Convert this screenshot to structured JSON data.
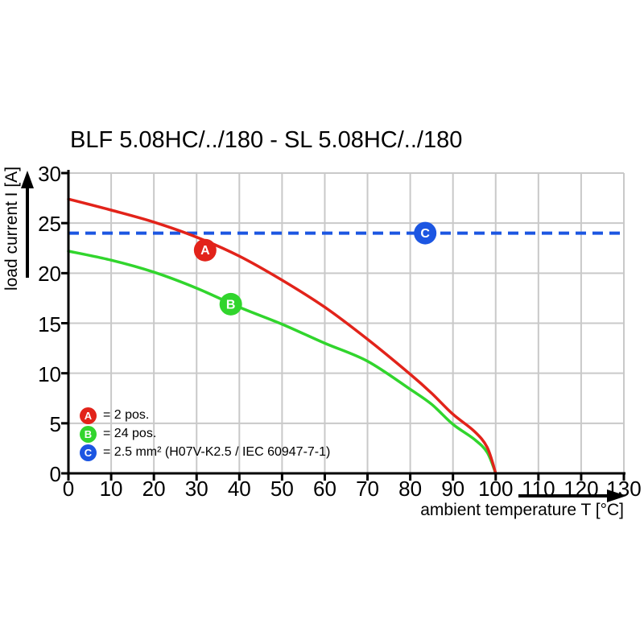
{
  "title": "BLF 5.08HC/../180 - SL 5.08HC/../180",
  "chart_data": {
    "type": "line",
    "title": "BLF 5.08HC/../180 - SL 5.08HC/../180",
    "xlabel": "ambient temperature T [°C]",
    "ylabel": "load current I [A]",
    "xlim": [
      0,
      130
    ],
    "ylim": [
      0,
      30
    ],
    "x_ticks": [
      0,
      10,
      20,
      30,
      40,
      50,
      60,
      70,
      80,
      90,
      100,
      110,
      120,
      130
    ],
    "y_ticks": [
      0,
      5,
      10,
      15,
      20,
      25,
      30
    ],
    "grid": true,
    "legend_position": "lower-left",
    "colors": {
      "grid": "#c9c9c9",
      "axis": "#000000",
      "background": "#ffffff"
    },
    "series": [
      {
        "name": "B",
        "label": "= 24 pos.",
        "color": "#31d52d",
        "style": "solid",
        "marker": {
          "x": 38,
          "y": 16.9
        },
        "points": [
          [
            0,
            22.2
          ],
          [
            10,
            21.3
          ],
          [
            20,
            20.1
          ],
          [
            30,
            18.5
          ],
          [
            40,
            16.6
          ],
          [
            50,
            14.9
          ],
          [
            60,
            13.0
          ],
          [
            70,
            11.2
          ],
          [
            80,
            8.4
          ],
          [
            85,
            6.9
          ],
          [
            90,
            4.9
          ],
          [
            95,
            3.4
          ],
          [
            98,
            2.1
          ],
          [
            100,
            0
          ]
        ]
      },
      {
        "name": "A",
        "label": "= 2 pos.",
        "color": "#e2231a",
        "style": "solid",
        "marker": {
          "x": 32,
          "y": 22.3
        },
        "points": [
          [
            0,
            27.4
          ],
          [
            10,
            26.3
          ],
          [
            20,
            25.1
          ],
          [
            30,
            23.6
          ],
          [
            40,
            21.7
          ],
          [
            50,
            19.3
          ],
          [
            60,
            16.6
          ],
          [
            70,
            13.4
          ],
          [
            80,
            9.9
          ],
          [
            85,
            8.0
          ],
          [
            90,
            5.9
          ],
          [
            95,
            4.2
          ],
          [
            98,
            2.6
          ],
          [
            100,
            0
          ]
        ]
      },
      {
        "name": "C",
        "label": "= 2.5 mm² (H07V-K2.5 / IEC 60947-7-1)",
        "color": "#1c56e2",
        "style": "dashed",
        "marker": {
          "x": 83.5,
          "y": 24
        },
        "points": [
          [
            0,
            24
          ],
          [
            130,
            24
          ]
        ]
      }
    ]
  },
  "legend": {
    "items": [
      {
        "letter": "A",
        "text": "= 2 pos.",
        "series": 1
      },
      {
        "letter": "B",
        "text": "= 24 pos.",
        "series": 0
      },
      {
        "letter": "C",
        "text": "= 2.5 mm² (H07V-K2.5 / IEC 60947-7-1)",
        "series": 2
      }
    ]
  }
}
